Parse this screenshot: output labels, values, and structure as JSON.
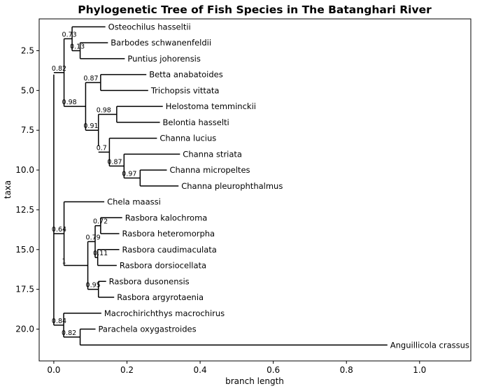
{
  "chart_data": {
    "type": "tree",
    "title": "Phylogenetic Tree of Fish Species in The Batanghari River",
    "xlabel": "branch length",
    "ylabel": "taxa",
    "xlim": [
      -0.04,
      1.14
    ],
    "ylim": [
      22.0,
      0.5
    ],
    "x_ticks": [
      0.0,
      0.2,
      0.4,
      0.6,
      0.8,
      1.0
    ],
    "x_tick_labels": [
      "0.0",
      "0.2",
      "0.4",
      "0.6",
      "0.8",
      "1.0"
    ],
    "y_ticks": [
      2.5,
      5.0,
      7.5,
      10.0,
      12.5,
      15.0,
      17.5,
      20.0
    ],
    "y_tick_labels": [
      "2.5",
      "5.0",
      "7.5",
      "10.0",
      "12.5",
      "15.0",
      "17.5",
      "20.0"
    ],
    "grid": false,
    "leaves": [
      {
        "name": "Osteochilus hasseltii",
        "y": 1,
        "x": 0.141
      },
      {
        "name": "Barbodes schwanenfeldii",
        "y": 2,
        "x": 0.148
      },
      {
        "name": "Puntius johorensis",
        "y": 3,
        "x": 0.194
      },
      {
        "name": "Betta anabatoides",
        "y": 4,
        "x": 0.253
      },
      {
        "name": "Trichopsis vittata",
        "y": 5,
        "x": 0.258
      },
      {
        "name": "Helostoma temminckii",
        "y": 6,
        "x": 0.298
      },
      {
        "name": "Belontia hasselti",
        "y": 7,
        "x": 0.29
      },
      {
        "name": "Channa lucius",
        "y": 8,
        "x": 0.282
      },
      {
        "name": "Channa striata",
        "y": 9,
        "x": 0.345
      },
      {
        "name": "Channa micropeltes",
        "y": 10,
        "x": 0.309
      },
      {
        "name": "Channa pleurophthalmus",
        "y": 11,
        "x": 0.341
      },
      {
        "name": "Chela maassi",
        "y": 12,
        "x": 0.138
      },
      {
        "name": "Rasbora kalochroma",
        "y": 13,
        "x": 0.187
      },
      {
        "name": "Rasbora heteromorpha",
        "y": 14,
        "x": 0.179
      },
      {
        "name": "Rasbora caudimaculata",
        "y": 15,
        "x": 0.179
      },
      {
        "name": "Rasbora dorsiocellata",
        "y": 16,
        "x": 0.172
      },
      {
        "name": "Rasbora dusonensis",
        "y": 17,
        "x": 0.143
      },
      {
        "name": "Rasbora argyrotaenia",
        "y": 18,
        "x": 0.165
      },
      {
        "name": "Macrochirichthys macrochirus",
        "y": 19,
        "x": 0.13
      },
      {
        "name": "Parachela oxygastroides",
        "y": 20,
        "x": 0.114
      },
      {
        "name": "Anguillicola crassus",
        "y": 21,
        "x": 0.912
      }
    ],
    "clades": [
      {
        "x": 0.0,
        "y_top": 4.0,
        "y_bot": 19.75,
        "label": "",
        "parent_x": null
      },
      {
        "x": 0.028,
        "y_top": 1.75,
        "y_bot": 6.0,
        "label": "0.82",
        "parent_x": 0.0
      },
      {
        "x": 0.05,
        "y_top": 1.0,
        "y_bot": 2.5,
        "label": "0.73",
        "parent_x": 0.028
      },
      {
        "x": 0.072,
        "y_top": 2.0,
        "y_bot": 3.0,
        "label": "0.13",
        "parent_x": 0.05
      },
      {
        "x": 0.087,
        "y_top": 4.5,
        "y_bot": 7.5,
        "label": "0.98",
        "parent_x": 0.028
      },
      {
        "x": 0.128,
        "y_top": 4.0,
        "y_bot": 5.0,
        "label": "0.87",
        "parent_x": 0.087
      },
      {
        "x": 0.122,
        "y_top": 6.5,
        "y_bot": 8.5,
        "label": "0.91",
        "parent_x": 0.087
      },
      {
        "x": 0.172,
        "y_top": 6.0,
        "y_bot": 7.0,
        "label": "0.98",
        "parent_x": 0.122
      },
      {
        "x": 0.152,
        "y_top": 8.0,
        "y_bot": 9.75,
        "label": "0.7",
        "parent_x": 0.122
      },
      {
        "x": 0.192,
        "y_top": 9.0,
        "y_bot": 10.5,
        "label": "0.87",
        "parent_x": 0.152
      },
      {
        "x": 0.236,
        "y_top": 10.0,
        "y_bot": 11.0,
        "label": "0.97",
        "parent_x": 0.192
      },
      {
        "x": 0.028,
        "y_top": 12.0,
        "y_bot": 16.0,
        "label": "0.64",
        "parent_x": 0.0
      },
      {
        "x": 0.093,
        "y_top": 14.5,
        "y_bot": 17.5,
        "label": "1",
        "parent_x": 0.028
      },
      {
        "x": 0.113,
        "y_top": 13.5,
        "y_bot": 15.5,
        "label": "0.79",
        "parent_x": 0.093
      },
      {
        "x": 0.128,
        "y_top": 13.0,
        "y_bot": 14.0,
        "label": "0.72",
        "parent_x": 0.113
      },
      {
        "x": 0.12,
        "y_top": 15.0,
        "y_bot": 16.0,
        "label": "0.11",
        "parent_x": 0.113
      },
      {
        "x": 0.122,
        "y_top": 17.0,
        "y_bot": 18.0,
        "label": "0.95",
        "parent_x": 0.093
      },
      {
        "x": 0.027,
        "y_top": 19.0,
        "y_bot": 20.5,
        "label": "0.84",
        "parent_x": 0.0
      },
      {
        "x": 0.072,
        "y_top": 20.0,
        "y_bot": 21.0,
        "label": "0.82",
        "parent_x": 0.027
      }
    ],
    "leaf_parents": [
      0.05,
      0.072,
      0.072,
      0.128,
      0.128,
      0.172,
      0.172,
      0.152,
      0.192,
      0.236,
      0.236,
      0.028,
      0.128,
      0.128,
      0.12,
      0.12,
      0.122,
      0.122,
      0.027,
      0.072,
      0.072
    ]
  }
}
